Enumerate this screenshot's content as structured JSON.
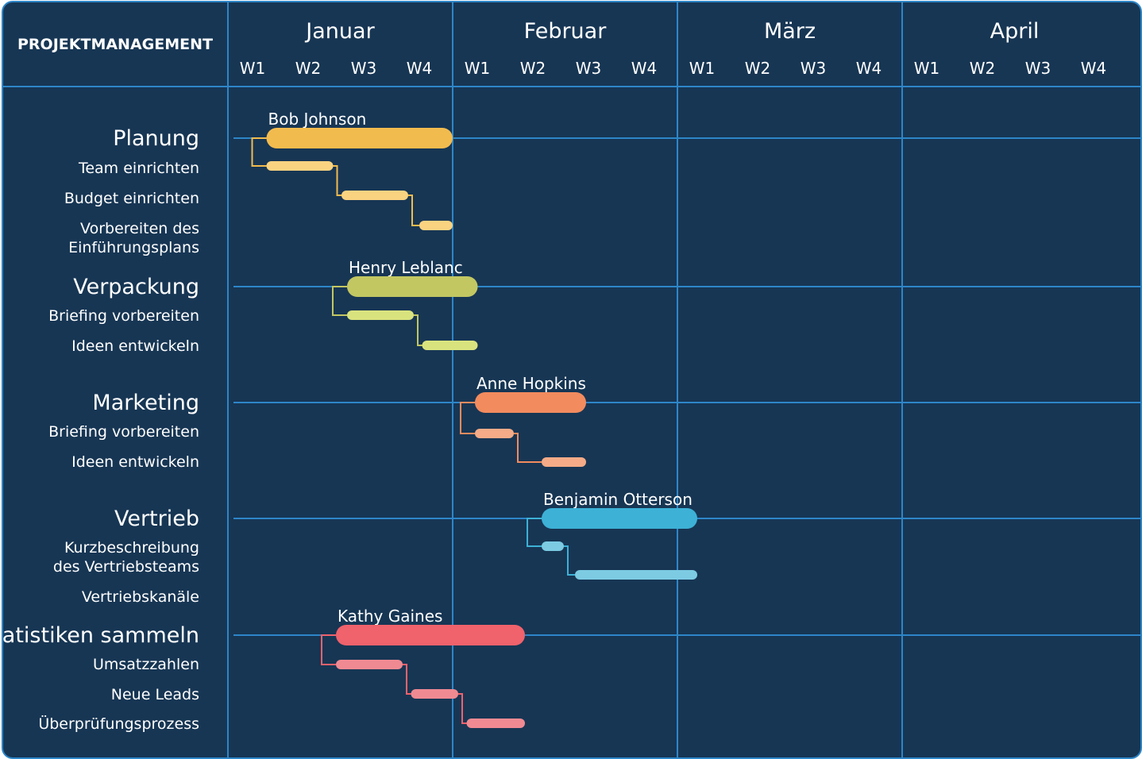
{
  "chart_data": {
    "type": "gantt",
    "title": "PROJEKTMANAGEMENT",
    "months": [
      "Januar",
      "Februar",
      "März",
      "April"
    ],
    "weeks": [
      "W1",
      "W2",
      "W3",
      "W4"
    ],
    "groups": [
      {
        "name": "Planung",
        "owner": "Bob Johnson",
        "color": "#f2bb4e",
        "task_color": "#fad381",
        "span": [
          0.25,
          3.6
        ],
        "tasks": [
          {
            "name": "Team einrichten",
            "span": [
              0.25,
              1.45
            ]
          },
          {
            "name": "Budget einrichten",
            "span": [
              1.6,
              2.8
            ]
          },
          {
            "name": "Vorbereiten des\nEinführungsplans",
            "span": [
              3.0,
              3.6
            ]
          }
        ]
      },
      {
        "name": "Verpackung",
        "owner": "Henry Leblanc",
        "color": "#c2c762",
        "task_color": "#d9e37e",
        "span": [
          1.7,
          4.05
        ],
        "tasks": [
          {
            "name": "Briefing vorbereiten",
            "span": [
              1.7,
              2.9
            ]
          },
          {
            "name": "Ideen entwickeln",
            "span": [
              3.05,
              4.05
            ]
          }
        ]
      },
      {
        "name": "Marketing",
        "owner": "Anne Hopkins",
        "color": "#f28b5e",
        "task_color": "#f5ab87",
        "span": [
          4.0,
          6.0
        ],
        "tasks": [
          {
            "name": "Briefing vorbereiten",
            "span": [
              4.0,
              4.7
            ]
          },
          {
            "name": "Ideen entwickeln",
            "span": [
              5.2,
              6.0
            ]
          }
        ]
      },
      {
        "name": "Vertrieb",
        "owner": "Benjamin Otterson",
        "color": "#3db1d6",
        "task_color": "#7ccbe3",
        "span": [
          5.2,
          8.0
        ],
        "tasks": [
          {
            "name": "Kurzbeschreibung\ndes Vertriebsteams",
            "span": [
              5.2,
              5.6
            ]
          },
          {
            "name": "Vertriebskanäle",
            "span": [
              5.8,
              8.0
            ]
          }
        ]
      },
      {
        "name": "Statistiken sammeln",
        "owner": "Kathy Gaines",
        "color": "#f0626c",
        "task_color": "#f08a92",
        "span": [
          1.5,
          4.9
        ],
        "tasks": [
          {
            "name": "Umsatzzahlen",
            "span": [
              1.5,
              2.7
            ]
          },
          {
            "name": "Neue Leads",
            "span": [
              2.85,
              3.7
            ]
          },
          {
            "name": "Überprüfungsprozess",
            "span": [
              3.85,
              4.9
            ]
          }
        ]
      }
    ]
  }
}
